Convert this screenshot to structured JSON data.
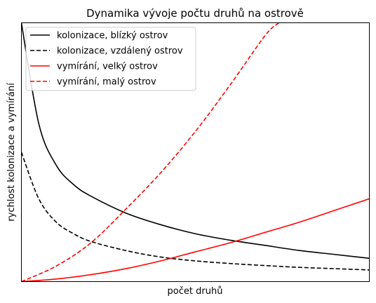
{
  "chart_data": {
    "type": "line",
    "title": "Dynamika vývoje počtu druhů na ostrově",
    "xlabel": "počet druhů",
    "ylabel": "rychlost kolonizace a vymírání",
    "xlim": [
      0,
      10
    ],
    "ylim": [
      0,
      10
    ],
    "xticks": false,
    "yticks": false,
    "grid": false,
    "legend": "top-left",
    "series": [
      {
        "name": "kolonizace, blízký ostrov",
        "color": "#000000",
        "dash": "solid",
        "x": [
          0,
          0.5,
          1,
          1.5,
          2,
          3,
          4,
          5,
          6,
          7,
          8,
          9,
          10
        ],
        "y": [
          10,
          6.1,
          4.5,
          3.75,
          3.3,
          2.65,
          2.2,
          1.85,
          1.6,
          1.4,
          1.2,
          1.05,
          0.9
        ]
      },
      {
        "name": "kolonizace, vzdálený ostrov",
        "color": "#000000",
        "dash": "dashed",
        "x": [
          0,
          0.5,
          1,
          1.5,
          2,
          3,
          4,
          5,
          6,
          7,
          8,
          9,
          10
        ],
        "y": [
          5.0,
          3.2,
          2.3,
          1.85,
          1.55,
          1.2,
          0.95,
          0.8,
          0.7,
          0.62,
          0.55,
          0.5,
          0.45
        ]
      },
      {
        "name": "vymírání, velký ostrov",
        "color": "#ff0000",
        "dash": "solid",
        "x": [
          0,
          1,
          2,
          3,
          4,
          5,
          6,
          7,
          8,
          9,
          10
        ],
        "y": [
          0,
          0.1,
          0.27,
          0.5,
          0.8,
          1.15,
          1.5,
          1.9,
          2.3,
          2.75,
          3.2
        ]
      },
      {
        "name": "vymírání, malý ostrov",
        "color": "#ff0000",
        "dash": "dashed",
        "x": [
          0,
          1,
          2,
          3,
          4,
          5,
          6,
          7,
          7.4
        ],
        "y": [
          0,
          0.6,
          1.5,
          2.8,
          4.2,
          5.8,
          7.6,
          9.5,
          10.0
        ]
      }
    ]
  }
}
